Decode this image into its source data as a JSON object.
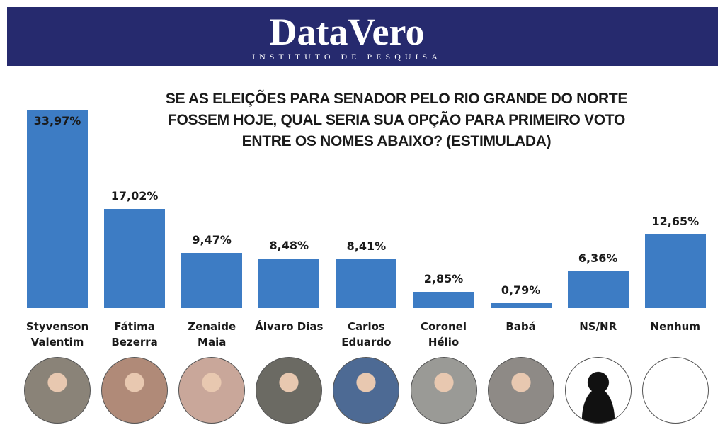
{
  "header": {
    "brand": "DataVero",
    "tagline": "INSTITUTO DE PESQUISA"
  },
  "chart_data": {
    "type": "bar",
    "title": "SE AS ELEIÇÕES PARA SENADOR PELO RIO GRANDE DO NORTE FOSSEM HOJE, QUAL SERIA SUA OPÇÃO PARA PRIMEIRO VOTO ENTRE OS NOMES ABAIXO? (ESTIMULADA)",
    "categories": [
      "Styvenson Valentim",
      "Fátima Bezerra",
      "Zenaide Maia",
      "Álvaro Dias",
      "Carlos Eduardo",
      "Coronel Hélio",
      "Babá",
      "NS/NR",
      "Nenhum"
    ],
    "values": [
      33.97,
      17.02,
      9.47,
      8.48,
      8.41,
      2.85,
      0.79,
      6.36,
      12.65
    ],
    "value_labels": [
      "33,97%",
      "17,02%",
      "9,47%",
      "8,48%",
      "8,41%",
      "2,85%",
      "0,79%",
      "6,36%",
      "12,65%"
    ],
    "color": "#3d7cc4"
  }
}
